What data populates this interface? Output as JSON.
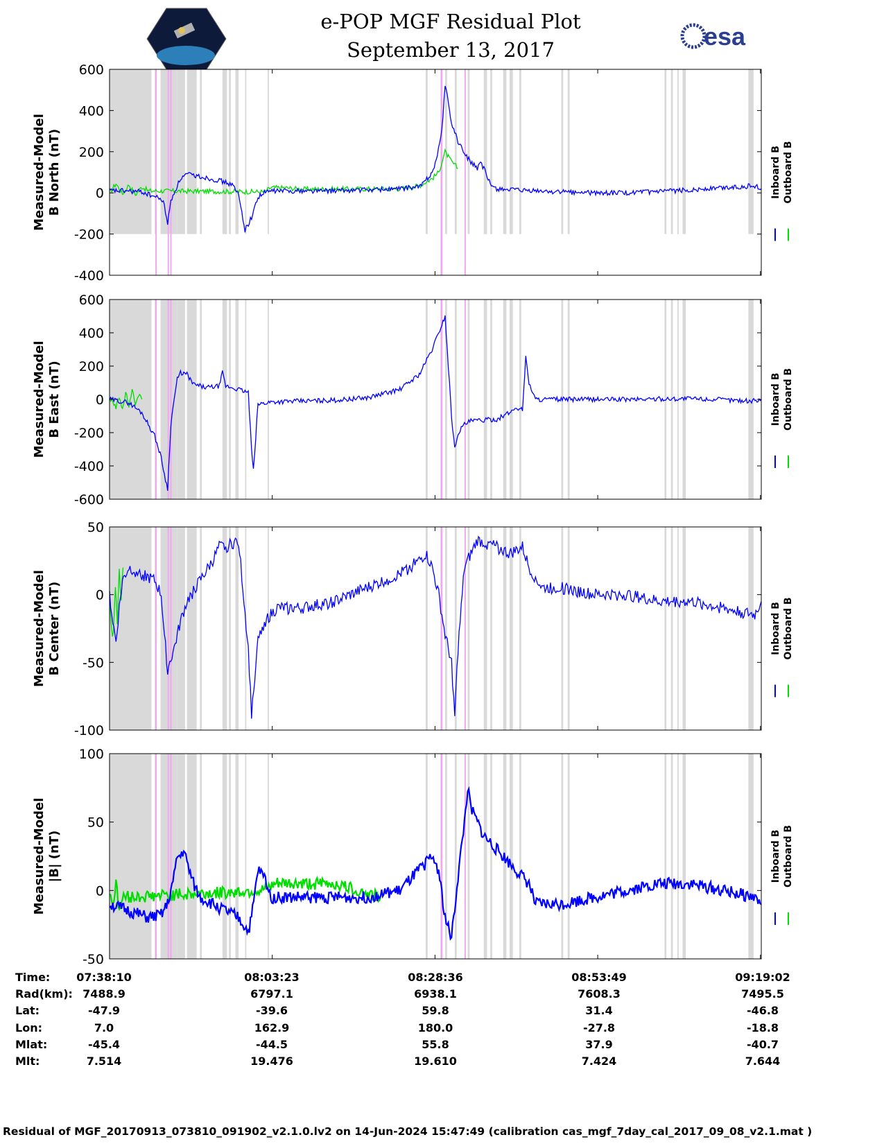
{
  "header": {
    "title_line1": "e-POP MGF Residual Plot",
    "title_line2": "September 13, 2017",
    "left_logo": "cassiope-mission-logo",
    "right_logo_text": "esa"
  },
  "colors": {
    "inboard": "#0000ff",
    "outboard": "#00dd00",
    "gray_band": "#d9d9d9",
    "pink_band": "#f0a8f0"
  },
  "chart_data": [
    {
      "type": "line",
      "ylabel_line1": "Measured-Model",
      "ylabel_line2": "B North (nT)",
      "ylim": [
        -400,
        600
      ],
      "yticks": [
        -400,
        -200,
        0,
        200,
        400,
        600
      ],
      "xlim_min": [
        0,
        101
      ],
      "xtick_minutes": [
        0,
        25.2167,
        50.4333,
        75.65,
        100.8667
      ],
      "legend": [
        "Inboard B",
        "Outboard B"
      ],
      "gray_band_bottom": -200,
      "series": [
        {
          "name": "Inboard B",
          "x": [
            0,
            2,
            5,
            8,
            8.5,
            9,
            9.5,
            10,
            11,
            12,
            14,
            17,
            19,
            20,
            21,
            22,
            23,
            24,
            25,
            27,
            30,
            35,
            40,
            45,
            48,
            49,
            50,
            50.8,
            51.5,
            52,
            53,
            54,
            55,
            56,
            57,
            57.5,
            58,
            59,
            60,
            61,
            62,
            64,
            65,
            70,
            75,
            80,
            85,
            90,
            95,
            100,
            101
          ],
          "y": [
            10,
            10,
            5,
            -30,
            -60,
            -150,
            -40,
            0,
            70,
            90,
            80,
            60,
            40,
            -10,
            -180,
            -120,
            -20,
            0,
            10,
            10,
            10,
            10,
            15,
            20,
            30,
            60,
            100,
            180,
            300,
            530,
            340,
            250,
            190,
            150,
            120,
            140,
            120,
            40,
            20,
            20,
            15,
            10,
            10,
            5,
            0,
            0,
            5,
            15,
            25,
            35,
            20
          ]
        },
        {
          "name": "Outboard B",
          "x": [
            0,
            1,
            2,
            3,
            4,
            5,
            6,
            24,
            25,
            27,
            30,
            45,
            48,
            50,
            51,
            52,
            53,
            54
          ],
          "y": [
            0,
            45,
            -5,
            40,
            -10,
            30,
            10,
            5,
            25,
            25,
            18,
            20,
            35,
            70,
            100,
            200,
            150,
            120
          ]
        }
      ]
    },
    {
      "type": "line",
      "ylabel_line1": "Measured-Model",
      "ylabel_line2": "B East (nT)",
      "ylim": [
        -600,
        600
      ],
      "yticks": [
        -600,
        -400,
        -200,
        0,
        200,
        400,
        600
      ],
      "xlim_min": [
        0,
        101
      ],
      "xtick_minutes": [
        0,
        25.2167,
        50.4333,
        75.65,
        100.8667
      ],
      "legend": [
        "Inboard B",
        "Outboard B"
      ],
      "series": [
        {
          "name": "Inboard B",
          "x": [
            0,
            3,
            5,
            6,
            7,
            8,
            8.5,
            9,
            9.5,
            10,
            10.5,
            11,
            12,
            13,
            15,
            17,
            17.5,
            18,
            20,
            21.5,
            22,
            22.3,
            23,
            25,
            30,
            35,
            40,
            45,
            48,
            50,
            52,
            52.5,
            53,
            53.5,
            54,
            55,
            56,
            60,
            62,
            63,
            64,
            64.5,
            65,
            66,
            70,
            80,
            90,
            100,
            101
          ],
          "y": [
            0,
            -20,
            -80,
            -150,
            -220,
            -350,
            -450,
            -540,
            -150,
            0,
            120,
            160,
            150,
            90,
            70,
            80,
            160,
            80,
            60,
            40,
            -300,
            -430,
            -30,
            -15,
            -10,
            -5,
            10,
            60,
            150,
            300,
            500,
            200,
            -100,
            -300,
            -200,
            -150,
            -130,
            -120,
            -80,
            -50,
            -60,
            250,
            100,
            0,
            0,
            0,
            5,
            -10,
            0
          ]
        },
        {
          "name": "Outboard B",
          "x": [
            0,
            1,
            1.5,
            2,
            2.5,
            3,
            3.5,
            4,
            4.5,
            5
          ],
          "y": [
            10,
            -50,
            20,
            -60,
            40,
            -40,
            50,
            -20,
            30,
            0
          ]
        }
      ]
    },
    {
      "type": "line",
      "ylabel_line1": "Measured-Model",
      "ylabel_line2": "B Center (nT)",
      "ylim": [
        -100,
        50
      ],
      "yticks": [
        -100,
        -50,
        0,
        50
      ],
      "xlim_min": [
        0,
        101
      ],
      "xtick_minutes": [
        0,
        25.2167,
        50.4333,
        75.65,
        100.8667
      ],
      "legend": [
        "Inboard B",
        "Outboard B"
      ],
      "series": [
        {
          "name": "Inboard B",
          "x": [
            0,
            0.5,
            1,
            1.5,
            2,
            3,
            5,
            7,
            8,
            8.5,
            9,
            10,
            11,
            12,
            14,
            16,
            17,
            18,
            20,
            21.5,
            22,
            22.5,
            23,
            24,
            26,
            30,
            35,
            40,
            45,
            48,
            49,
            50,
            51,
            52,
            53,
            53.5,
            54,
            55,
            57,
            60,
            62,
            64,
            65,
            67,
            70,
            75,
            80,
            85,
            90,
            95,
            100,
            101
          ],
          "y": [
            0,
            -20,
            -35,
            -10,
            10,
            20,
            15,
            10,
            0,
            -30,
            -55,
            -40,
            -20,
            -5,
            10,
            25,
            35,
            35,
            40,
            -40,
            -88,
            -60,
            -35,
            -20,
            -10,
            -10,
            -5,
            5,
            15,
            25,
            30,
            20,
            0,
            -30,
            -50,
            -90,
            -40,
            20,
            40,
            35,
            30,
            35,
            20,
            5,
            5,
            0,
            0,
            -5,
            -5,
            -10,
            -15,
            -5
          ]
        },
        {
          "name": "Outboard B",
          "x": [
            0,
            0.3,
            0.6,
            0.9,
            1.2,
            1.5,
            1.8,
            2.1
          ],
          "y": [
            0,
            -25,
            -30,
            10,
            -20,
            15,
            0,
            20
          ]
        }
      ]
    },
    {
      "type": "line",
      "ylabel_line1": "Measured-Model",
      "ylabel_line2": "|B| (nT)",
      "ylim": [
        -50,
        100
      ],
      "yticks": [
        -50,
        0,
        50,
        100
      ],
      "xlim_min": [
        0,
        101
      ],
      "xtick_minutes": [
        0,
        25.2167,
        50.4333,
        75.65,
        100.8667
      ],
      "legend": [
        "Inboard B",
        "Outboard B"
      ],
      "series": [
        {
          "name": "Inboard B",
          "x": [
            0,
            3,
            6,
            8,
            9,
            10,
            10.5,
            11,
            11.5,
            12,
            13,
            14,
            16,
            18,
            20,
            21.5,
            22,
            23,
            24,
            25,
            30,
            35,
            40,
            45,
            47,
            50,
            51,
            52,
            53,
            54,
            55,
            55.5,
            56,
            58,
            60,
            62,
            65,
            66,
            70,
            75,
            80,
            85,
            90,
            95,
            100,
            101
          ],
          "y": [
            -10,
            -15,
            -20,
            -18,
            -10,
            10,
            25,
            25,
            30,
            20,
            5,
            -5,
            -10,
            -15,
            -20,
            -30,
            -20,
            15,
            10,
            -5,
            -5,
            -5,
            -5,
            0,
            10,
            25,
            15,
            -20,
            -35,
            10,
            50,
            75,
            60,
            40,
            30,
            20,
            5,
            -10,
            -10,
            -5,
            0,
            5,
            5,
            0,
            -5,
            -10
          ]
        },
        {
          "name": "Outboard B",
          "x": [
            0,
            0.5,
            1,
            1.5,
            2,
            24,
            26,
            30,
            35,
            42
          ],
          "y": [
            0,
            -10,
            5,
            -15,
            -5,
            0,
            5,
            5,
            5,
            -5
          ]
        }
      ]
    }
  ],
  "x_axis_table": {
    "row_labels": [
      "Time:",
      "Rad(km):",
      "Lat:",
      "Lon:",
      "Mlat:",
      "Mlt:"
    ],
    "columns": [
      [
        "07:38:10",
        "7488.9",
        "-47.9",
        "7.0",
        "-45.4",
        "7.514"
      ],
      [
        "08:03:23",
        "6797.1",
        "-39.6",
        "162.9",
        "-44.5",
        "19.476"
      ],
      [
        "08:28:36",
        "6938.1",
        "59.8",
        "180.0",
        "55.8",
        "19.610"
      ],
      [
        "08:53:49",
        "7608.3",
        "31.4",
        "-27.8",
        "37.9",
        "7.424"
      ],
      [
        "09:19:02",
        "7495.5",
        "-46.8",
        "-18.8",
        "-40.7",
        "7.644"
      ]
    ]
  },
  "footer": "Residual of MGF_20170913_073810_091902_v2.1.0.lv2 on 14-Jun-2024 15:47:49 (calibration cas_mgf_7day_cal_2017_09_08_v2.1.mat )"
}
